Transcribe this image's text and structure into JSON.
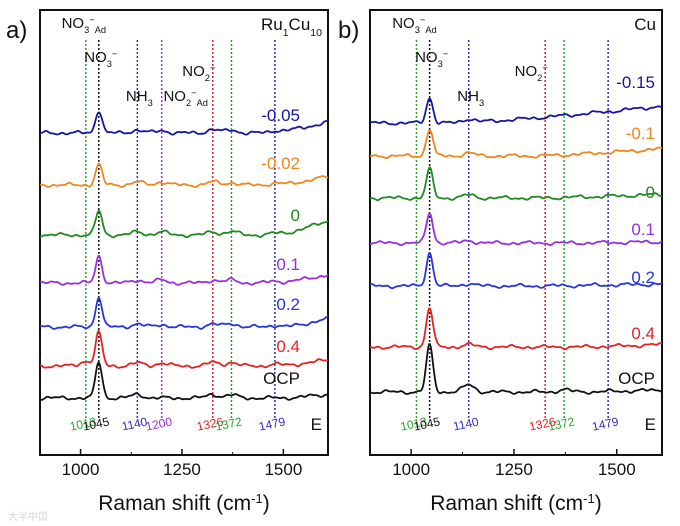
{
  "chart_data": [
    {
      "type": "line",
      "panel_label": "a)",
      "catalyst": "Ru1Cu10",
      "xlabel": "Raman shift (cm-1)",
      "xlim": [
        900,
        1610
      ],
      "xticks": [
        1000,
        1250,
        1500
      ],
      "yaxis": "stacked offset, arbitrary intensity",
      "potential_axis_label": "E",
      "series": [
        {
          "name": "-0.05",
          "color": "#1515a3",
          "baseline": 0.78,
          "peak_heights": {
            "1045": 0.38,
            "1140": 0.05,
            "1200": 0.04,
            "1326": 0.06,
            "1372": 0.05,
            "1479": 0.03
          },
          "slope": 0.45,
          "slope_start": 1460
        },
        {
          "name": "-0.02",
          "color": "#f0861e",
          "baseline": 0.62,
          "peak_heights": {
            "1045": 0.34,
            "1140": 0.05,
            "1200": 0.05,
            "1326": 0.05,
            "1372": 0.04,
            "1479": 0.03
          },
          "slope": 0.35,
          "slope_start": 1480
        },
        {
          "name": "0",
          "color": "#208a20",
          "baseline": 0.46,
          "peak_heights": {
            "1045": 0.4,
            "1140": 0.05,
            "1200": 0.05,
            "1326": 0.05,
            "1372": 0.06,
            "1479": 0.03
          },
          "slope": 0.6,
          "slope_start": 1480
        },
        {
          "name": "0.1",
          "color": "#9a2ee0",
          "baseline": 0.31,
          "peak_heights": {
            "1045": 0.45,
            "1140": 0.05,
            "1200": 0.05,
            "1326": 0.05,
            "1372": 0.05,
            "1479": 0.03
          },
          "slope": 0.35,
          "slope_start": 1480
        },
        {
          "name": "0.2",
          "color": "#2535e0",
          "baseline": 0.17,
          "peak_heights": {
            "1045": 0.5,
            "1140": 0.05,
            "1200": 0.04,
            "1326": 0.05,
            "1372": 0.06,
            "1479": 0.03
          },
          "slope": 0.35,
          "slope_start": 1500
        },
        {
          "name": "0.4",
          "color": "#e52222",
          "baseline": 0.03,
          "peak_heights": {
            "1013": 0.08,
            "1045": 0.55,
            "1140": 0.05,
            "1200": 0.05,
            "1326": 0.06,
            "1372": 0.06,
            "1479": 0.03
          },
          "slope": 0.25,
          "slope_start": 1480
        },
        {
          "name": "OCP",
          "color": "#111111",
          "baseline": -0.11,
          "peak_heights": {
            "1045": 0.6,
            "1140": 0.06,
            "1326": 0.06,
            "1372": 0.05
          },
          "slope": 0.15,
          "slope_start": 1500
        }
      ],
      "reference_lines": [
        {
          "x": 1013,
          "color": "#2aa52a",
          "label": "1013"
        },
        {
          "x": 1045,
          "color": "#111111",
          "label": "1045"
        },
        {
          "x": 1140,
          "color": "#2d2dbf",
          "label": "1140"
        },
        {
          "x": 1200,
          "color": "#9a2ee0",
          "label": "1200"
        },
        {
          "x": 1326,
          "color": "#e52222",
          "label": "1326"
        },
        {
          "x": 1372,
          "color": "#2aa52a",
          "label": "1372"
        },
        {
          "x": 1479,
          "color": "#2d2dbf",
          "label": "1479"
        }
      ],
      "species_labels": [
        {
          "text": "NO3-Ad",
          "x": 1013
        },
        {
          "text": "NO3-",
          "x": 1045
        },
        {
          "text": "NH3",
          "x": 1140
        },
        {
          "text": "NO2-Ad",
          "x": 1200
        },
        {
          "text": "NO2-",
          "x": 1326
        }
      ]
    },
    {
      "type": "line",
      "panel_label": "b)",
      "catalyst": "Cu",
      "xlabel": "Raman shift (cm-1)",
      "xlim": [
        900,
        1610
      ],
      "xticks": [
        1000,
        1250,
        1500
      ],
      "yaxis": "stacked offset, arbitrary intensity",
      "potential_axis_label": "E",
      "series": [
        {
          "name": "-0.15",
          "color": "#1515a3",
          "baseline": 0.79,
          "peak_heights": {
            "1045": 0.42,
            "1140": 0.06
          },
          "slope": 0.7,
          "slope_start": 1100
        },
        {
          "name": "-0.1",
          "color": "#f0861e",
          "baseline": 0.65,
          "peak_heights": {
            "1045": 0.45,
            "1140": 0.05
          },
          "slope": 0.3,
          "slope_start": 1300
        },
        {
          "name": "0",
          "color": "#208a20",
          "baseline": 0.5,
          "peak_heights": {
            "1045": 0.48,
            "1140": 0.05
          },
          "slope": 0.15,
          "slope_start": 1300
        },
        {
          "name": "0.1",
          "color": "#9a2ee0",
          "baseline": 0.34,
          "peak_heights": {
            "1045": 0.5,
            "1140": 0.04
          },
          "slope": 0.05,
          "slope_start": 1400
        },
        {
          "name": "0.2",
          "color": "#2535e0",
          "baseline": 0.2,
          "peak_heights": {
            "1045": 0.55,
            "1140": 0.04
          },
          "slope": 0.08,
          "slope_start": 1300
        },
        {
          "name": "0.4",
          "color": "#e52222",
          "baseline": 0.04,
          "peak_heights": {
            "1045": 0.65,
            "1140": 0.04
          },
          "slope": 0.1,
          "slope_start": 1400
        },
        {
          "name": "OCP",
          "color": "#111111",
          "baseline": -0.1,
          "peak_heights": {
            "1045": 0.78,
            "1140": 0.12,
            "1372": 0.04
          },
          "slope": 0.08,
          "slope_start": 1400
        }
      ],
      "reference_lines": [
        {
          "x": 1013,
          "color": "#2aa52a",
          "label": "1013"
        },
        {
          "x": 1045,
          "color": "#111111",
          "label": "1045"
        },
        {
          "x": 1140,
          "color": "#2d2dbf",
          "label": "1140"
        },
        {
          "x": 1326,
          "color": "#e52222",
          "label": "1326"
        },
        {
          "x": 1372,
          "color": "#2aa52a",
          "label": "1372"
        },
        {
          "x": 1479,
          "color": "#2d2dbf",
          "label": "1479"
        }
      ],
      "species_labels": [
        {
          "text": "NO3-Ad",
          "x": 1013
        },
        {
          "text": "NO3-",
          "x": 1045
        },
        {
          "text": "NH3",
          "x": 1140
        },
        {
          "text": "NO2-",
          "x": 1326
        }
      ]
    }
  ],
  "watermark": "大半中国"
}
